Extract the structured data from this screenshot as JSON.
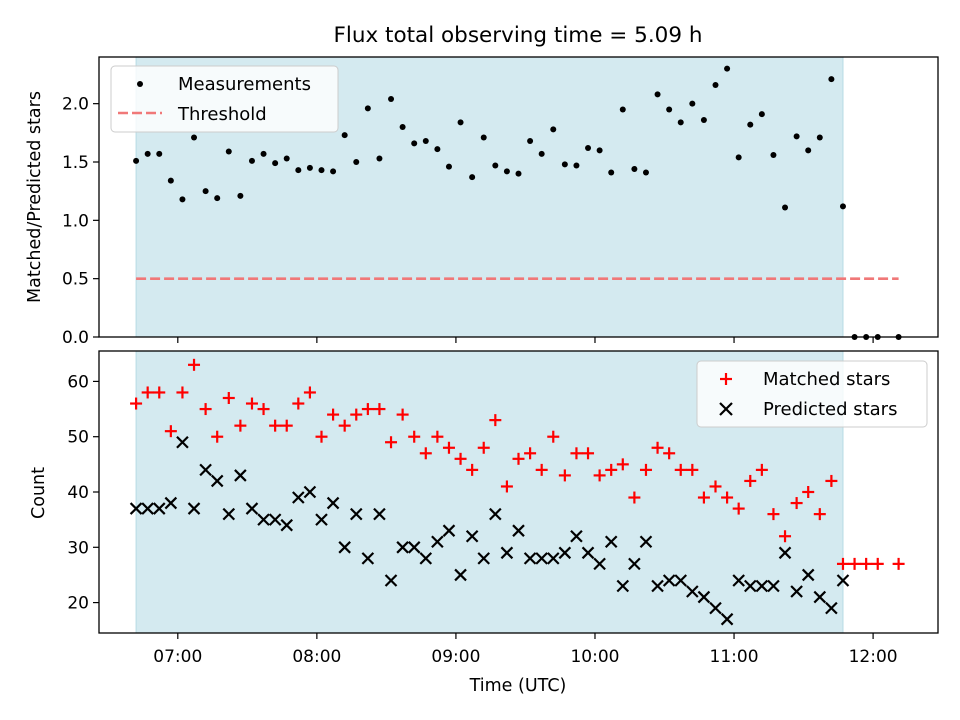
{
  "chart_data": [
    {
      "type": "scatter",
      "title": "Flux total observing time = 5.09 h",
      "xlabel": "",
      "ylabel": "Matched/Predicted stars",
      "xlim": [
        "06:26",
        "12:28"
      ],
      "ylim": [
        0,
        2.4
      ],
      "yticks": [
        "0.0",
        "0.5",
        "1.0",
        "1.5",
        "2.0"
      ],
      "shaded_interval": [
        "06:42",
        "11:47"
      ],
      "legend": {
        "position": "top-left",
        "entries": [
          "Measurements",
          "Threshold"
        ]
      },
      "series": [
        {
          "name": "Measurements",
          "x": [
            "06:42",
            "06:47",
            "06:52",
            "06:57",
            "07:02",
            "07:07",
            "07:12",
            "07:17",
            "07:22",
            "07:27",
            "07:32",
            "07:37",
            "07:42",
            "07:47",
            "07:52",
            "07:57",
            "08:02",
            "08:07",
            "08:12",
            "08:17",
            "08:22",
            "08:27",
            "08:32",
            "08:37",
            "08:42",
            "08:47",
            "08:52",
            "08:57",
            "09:02",
            "09:07",
            "09:12",
            "09:17",
            "09:22",
            "09:27",
            "09:32",
            "09:37",
            "09:42",
            "09:47",
            "09:52",
            "09:57",
            "10:02",
            "10:07",
            "10:12",
            "10:17",
            "10:22",
            "10:27",
            "10:32",
            "10:37",
            "10:42",
            "10:47",
            "10:52",
            "10:57",
            "11:02",
            "11:07",
            "11:12",
            "11:17",
            "11:22",
            "11:27",
            "11:32",
            "11:37",
            "11:42",
            "11:47",
            "11:52",
            "11:57",
            "12:02",
            "12:11"
          ],
          "values": [
            1.51,
            1.57,
            1.57,
            1.34,
            1.18,
            1.71,
            1.25,
            1.19,
            1.59,
            1.21,
            1.51,
            1.57,
            1.49,
            1.53,
            1.43,
            1.45,
            1.43,
            1.42,
            1.73,
            1.5,
            1.96,
            1.53,
            2.04,
            1.8,
            1.66,
            1.68,
            1.61,
            1.46,
            1.84,
            1.37,
            1.71,
            1.47,
            1.42,
            1.4,
            1.68,
            1.57,
            1.78,
            1.48,
            1.47,
            1.62,
            1.6,
            1.41,
            1.95,
            1.44,
            1.41,
            2.08,
            1.95,
            1.84,
            2.0,
            1.86,
            2.16,
            2.3,
            1.54,
            1.82,
            1.91,
            1.56,
            1.11,
            1.72,
            1.6,
            1.71,
            2.21,
            1.12,
            0,
            0,
            0,
            0
          ]
        },
        {
          "name": "Threshold",
          "style": "dashed",
          "x": [
            "06:42",
            "12:11"
          ],
          "values": [
            0.5,
            0.5
          ]
        }
      ]
    },
    {
      "type": "scatter",
      "title": "",
      "xlabel": "Time (UTC)",
      "ylabel": "Count",
      "xlim": [
        "06:26",
        "12:28"
      ],
      "ylim": [
        14.5,
        65.5
      ],
      "yticks": [
        "20",
        "30",
        "40",
        "50",
        "60"
      ],
      "xticks": [
        "07:00",
        "08:00",
        "09:00",
        "10:00",
        "11:00",
        "12:00"
      ],
      "shaded_interval": [
        "06:42",
        "11:47"
      ],
      "legend": {
        "position": "top-right",
        "entries": [
          "Matched stars",
          "Predicted stars"
        ]
      },
      "series": [
        {
          "name": "Matched stars",
          "marker": "plus",
          "x": [
            "06:42",
            "06:47",
            "06:52",
            "06:57",
            "07:02",
            "07:07",
            "07:12",
            "07:17",
            "07:22",
            "07:27",
            "07:32",
            "07:37",
            "07:42",
            "07:47",
            "07:52",
            "07:57",
            "08:02",
            "08:07",
            "08:12",
            "08:17",
            "08:22",
            "08:27",
            "08:32",
            "08:37",
            "08:42",
            "08:47",
            "08:52",
            "08:57",
            "09:02",
            "09:07",
            "09:12",
            "09:17",
            "09:22",
            "09:27",
            "09:32",
            "09:37",
            "09:42",
            "09:47",
            "09:52",
            "09:57",
            "10:02",
            "10:07",
            "10:12",
            "10:17",
            "10:22",
            "10:27",
            "10:32",
            "10:37",
            "10:42",
            "10:47",
            "10:52",
            "10:57",
            "11:02",
            "11:07",
            "11:12",
            "11:17",
            "11:22",
            "11:27",
            "11:32",
            "11:37",
            "11:42",
            "11:47",
            "11:52",
            "11:57",
            "12:02",
            "12:11"
          ],
          "values": [
            56,
            58,
            58,
            51,
            58,
            63,
            55,
            50,
            57,
            52,
            56,
            55,
            52,
            52,
            56,
            58,
            50,
            54,
            52,
            54,
            55,
            55,
            49,
            54,
            50,
            47,
            50,
            48,
            46,
            44,
            48,
            53,
            41,
            46,
            47,
            44,
            50,
            43,
            47,
            47,
            43,
            44,
            45,
            39,
            44,
            48,
            47,
            44,
            44,
            39,
            41,
            39,
            37,
            42,
            44,
            36,
            32,
            38,
            40,
            36,
            42,
            27,
            27,
            27,
            27,
            27
          ]
        },
        {
          "name": "Predicted stars",
          "marker": "x",
          "x": [
            "06:42",
            "06:47",
            "06:52",
            "06:57",
            "07:02",
            "07:07",
            "07:12",
            "07:17",
            "07:22",
            "07:27",
            "07:32",
            "07:37",
            "07:42",
            "07:47",
            "07:52",
            "07:57",
            "08:02",
            "08:07",
            "08:12",
            "08:17",
            "08:22",
            "08:27",
            "08:32",
            "08:37",
            "08:42",
            "08:47",
            "08:52",
            "08:57",
            "09:02",
            "09:07",
            "09:12",
            "09:17",
            "09:22",
            "09:27",
            "09:32",
            "09:37",
            "09:42",
            "09:47",
            "09:52",
            "09:57",
            "10:02",
            "10:07",
            "10:12",
            "10:17",
            "10:22",
            "10:27",
            "10:32",
            "10:37",
            "10:42",
            "10:47",
            "10:52",
            "10:57",
            "11:02",
            "11:07",
            "11:12",
            "11:17",
            "11:22",
            "11:27",
            "11:32",
            "11:37",
            "11:42",
            "11:47"
          ],
          "values": [
            37,
            37,
            37,
            38,
            49,
            37,
            44,
            42,
            36,
            43,
            37,
            35,
            35,
            34,
            39,
            40,
            35,
            38,
            30,
            36,
            28,
            36,
            24,
            30,
            30,
            28,
            31,
            33,
            25,
            32,
            28,
            36,
            29,
            33,
            28,
            28,
            28,
            29,
            32,
            29,
            27,
            31,
            23,
            27,
            31,
            23,
            24,
            24,
            22,
            21,
            19,
            17,
            24,
            23,
            23,
            23,
            29,
            22,
            25,
            21,
            19,
            24
          ]
        }
      ]
    }
  ],
  "colors": {
    "shade": "#d4eaf0",
    "shade_edge": "#b7dbe4",
    "measurements": "#000000",
    "threshold": "#f07878",
    "matched": "#ff0000",
    "predicted": "#000000"
  }
}
